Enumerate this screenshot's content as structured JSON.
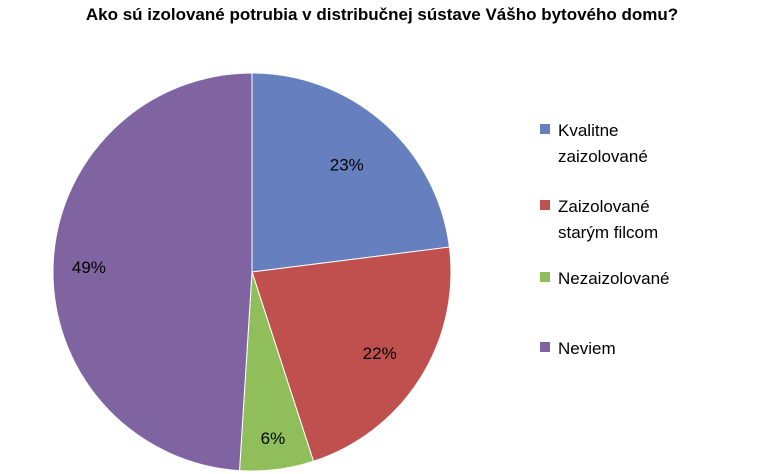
{
  "chart_data": {
    "type": "pie",
    "title": "Ako sú izolované potrubia v distribučnej sústave Vášho bytového domu?",
    "categories": [
      "Kvalitne zaizolované",
      "Zaizolované starým filcom",
      "Nezaizolované",
      "Neviem"
    ],
    "legend_lines": [
      [
        "Kvalitne",
        "zaizolované"
      ],
      [
        "Zaizolované",
        "starým filcom"
      ],
      [
        "Nezaizolované"
      ],
      [
        "Neviem"
      ]
    ],
    "values": [
      23,
      22,
      6,
      49
    ],
    "data_labels": [
      "23%",
      "22%",
      "6%",
      "49%"
    ],
    "colors": [
      "#6680BF",
      "#C0504D",
      "#8FBE5B",
      "#8064A2"
    ],
    "legend_position": "right",
    "start_angle": "top, clockwise"
  }
}
